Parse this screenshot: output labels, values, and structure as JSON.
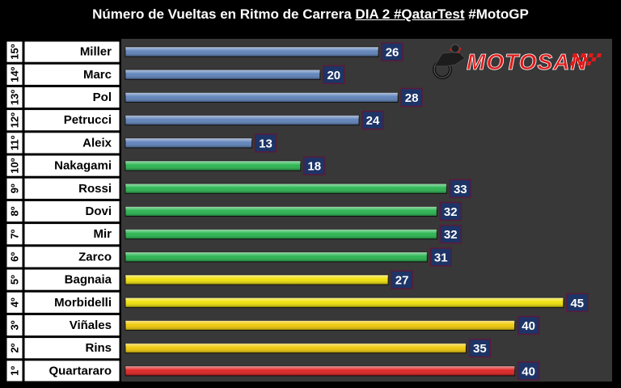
{
  "title": {
    "prefix": "Número de Vueltas en Ritmo de Carrera",
    "highlight": "DIA 2 #QatarTest",
    "suffix": "#MotoGP"
  },
  "logo": {
    "text": "MOTOSAN",
    "icon": "motorcycle-rider-icon"
  },
  "chart_data": {
    "type": "bar",
    "orientation": "horizontal",
    "title": "Número de Vueltas en Ritmo de Carrera DIA 2 #QatarTest #MotoGP",
    "categories": [
      "Miller",
      "Marc",
      "Pol",
      "Petrucci",
      "Aleix",
      "Nakagami",
      "Rossi",
      "Dovi",
      "Mir",
      "Zarco",
      "Bagnaia",
      "Morbidelli",
      "Viñales",
      "Rins",
      "Quartararo"
    ],
    "positions": [
      "15º",
      "14º",
      "13º",
      "12º",
      "11º",
      "10º",
      "9º",
      "8º",
      "7º",
      "6º",
      "5º",
      "4º",
      "3º",
      "2º",
      "1º"
    ],
    "values": [
      26,
      20,
      28,
      24,
      13,
      18,
      33,
      32,
      32,
      31,
      27,
      45,
      40,
      35,
      40
    ],
    "bar_colors": [
      "#5a7fb8",
      "#5a7fb8",
      "#5a7fb8",
      "#5a7fb8",
      "#5a7fb8",
      "#22b34a",
      "#22b34a",
      "#22b34a",
      "#22b34a",
      "#22b34a",
      "#f0e000",
      "#f0e000",
      "#f0c800",
      "#f0c800",
      "#e01a1a"
    ],
    "xlim": [
      0,
      50
    ],
    "data_labels": true,
    "xlabel": "",
    "ylabel": ""
  }
}
